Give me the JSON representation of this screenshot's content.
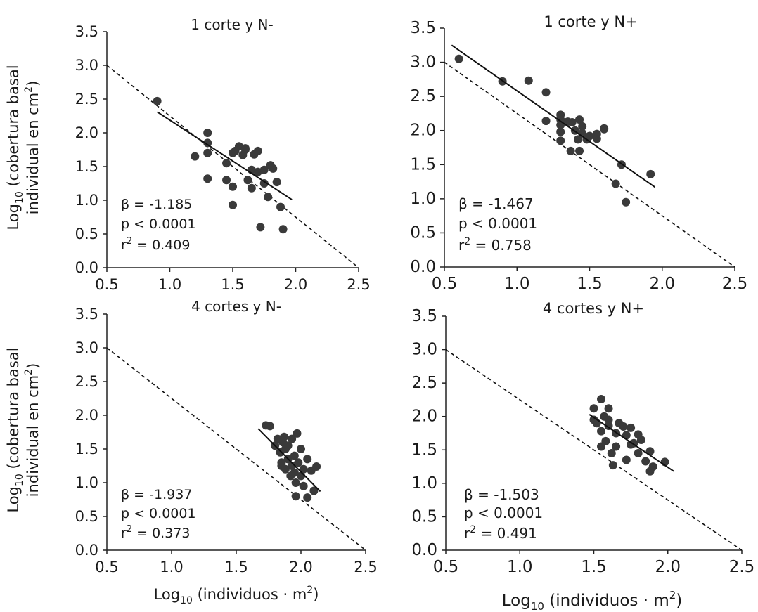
{
  "ylabel": {
    "line1_pre": "Log",
    "line1_sub": "10",
    "line1_post": " (cobertura basal",
    "line2_pre": "individual en cm",
    "line2_sup": "2",
    "line2_post": ")"
  },
  "xlabel": {
    "pre": "Log",
    "sub": "10",
    "mid": " (individuos · m",
    "sup": "2",
    "post": ")"
  },
  "colors": {
    "points": "#3a3a3a",
    "lines": "#111111",
    "axes": "#222222"
  },
  "chart_data": [
    {
      "type": "scatter",
      "title": "1 corte y N-",
      "xlim": [
        0.5,
        2.5
      ],
      "ylim": [
        0.0,
        3.5
      ],
      "xticks": [
        "0.5",
        "1.0",
        "1.5",
        "2.0",
        "2.5"
      ],
      "yticks": [
        "0.0",
        "0.5",
        "1.0",
        "1.5",
        "2.0",
        "2.5",
        "3.0",
        "3.5"
      ],
      "stats": {
        "beta": "β = -1.185",
        "p": "p < 0.0001",
        "r2_pre": "r",
        "r2_sup": "2",
        "r2_post": " = 0.409"
      },
      "fit_line": {
        "x": [
          0.9,
          1.97
        ],
        "y": [
          2.31,
          1.01
        ]
      },
      "reference_line": {
        "x": [
          0.5,
          2.5
        ],
        "y": [
          3.0,
          0.0
        ]
      },
      "points": {
        "x": [
          0.9,
          1.3,
          1.3,
          1.3,
          1.2,
          1.3,
          1.45,
          1.45,
          1.5,
          1.5,
          1.5,
          1.52,
          1.55,
          1.58,
          1.6,
          1.62,
          1.65,
          1.65,
          1.7,
          1.7,
          1.72,
          1.75,
          1.75,
          1.78,
          1.8,
          1.82,
          1.85,
          1.88,
          1.9,
          1.6,
          1.67
        ],
        "y": [
          2.47,
          2.0,
          1.85,
          1.7,
          1.65,
          1.32,
          1.55,
          1.3,
          1.7,
          1.2,
          0.93,
          1.73,
          1.8,
          1.67,
          1.77,
          1.3,
          1.45,
          1.18,
          1.73,
          1.42,
          0.6,
          1.45,
          1.25,
          1.05,
          1.52,
          1.47,
          1.27,
          0.9,
          0.57,
          1.75,
          1.68
        ]
      }
    },
    {
      "type": "scatter",
      "title": "1 corte y N+",
      "xlim": [
        0.5,
        2.5
      ],
      "ylim": [
        0.0,
        3.5
      ],
      "xticks": [
        "0.5",
        "1.0",
        "1.5",
        "2.0",
        "2.5"
      ],
      "yticks": [
        "0.0",
        "0.5",
        "1.0",
        "1.5",
        "2.0",
        "2.5",
        "3.0",
        "3.5"
      ],
      "stats": {
        "beta": "β = -1.467",
        "p": "p < 0.0001",
        "r2_pre": "r",
        "r2_sup": "2",
        "r2_post": " = 0.758"
      },
      "fit_line": {
        "x": [
          0.55,
          1.95
        ],
        "y": [
          3.25,
          1.17
        ]
      },
      "reference_line": {
        "x": [
          0.5,
          2.5
        ],
        "y": [
          3.0,
          0.0
        ]
      },
      "points": {
        "x": [
          0.6,
          0.9,
          1.08,
          1.2,
          1.2,
          1.3,
          1.3,
          1.3,
          1.3,
          1.3,
          1.35,
          1.37,
          1.38,
          1.4,
          1.42,
          1.43,
          1.43,
          1.45,
          1.45,
          1.48,
          1.5,
          1.55,
          1.55,
          1.6,
          1.6,
          1.68,
          1.72,
          1.75,
          1.92
        ],
        "y": [
          3.05,
          2.72,
          2.73,
          2.56,
          2.14,
          2.23,
          2.16,
          2.08,
          1.98,
          1.85,
          2.13,
          1.7,
          2.12,
          2.0,
          1.87,
          2.16,
          1.7,
          2.06,
          1.96,
          1.87,
          1.92,
          1.95,
          1.88,
          2.03,
          2.02,
          1.22,
          1.5,
          0.95,
          1.36
        ]
      }
    },
    {
      "type": "scatter",
      "title": "4 cortes y N-",
      "xlim": [
        0.5,
        2.5
      ],
      "ylim": [
        0.0,
        3.5
      ],
      "xticks": [
        "0.5",
        "1.0",
        "1.5",
        "2.0",
        "2.5"
      ],
      "yticks": [
        "0.0",
        "0.5",
        "1.0",
        "1.5",
        "2.0",
        "2.5",
        "3.0",
        "3.5"
      ],
      "stats": {
        "beta": "β = -1.937",
        "p": "p < 0.0001",
        "r2_pre": "r",
        "r2_sup": "2",
        "r2_post": " = 0.373"
      },
      "fit_line": {
        "x": [
          1.67,
          2.15
        ],
        "y": [
          1.8,
          0.87
        ]
      },
      "reference_line": {
        "x": [
          0.5,
          2.5
        ],
        "y": [
          3.0,
          0.0
        ]
      },
      "points": {
        "x": [
          1.73,
          1.76,
          1.82,
          1.84,
          1.85,
          1.86,
          1.87,
          1.88,
          1.88,
          1.9,
          1.9,
          1.92,
          1.93,
          1.93,
          1.95,
          1.95,
          1.96,
          1.96,
          1.97,
          1.98,
          2.0,
          2.0,
          2.02,
          2.02,
          2.05,
          2.05,
          2.08,
          2.1,
          2.12,
          1.8,
          1.85
        ],
        "y": [
          1.85,
          1.84,
          1.65,
          1.45,
          1.3,
          1.6,
          1.68,
          1.5,
          1.2,
          1.55,
          1.35,
          1.1,
          1.65,
          1.25,
          1.4,
          1.15,
          0.8,
          1.0,
          1.73,
          1.3,
          1.1,
          1.5,
          0.95,
          1.2,
          1.35,
          0.78,
          1.18,
          0.88,
          1.24,
          1.55,
          1.25
        ]
      }
    },
    {
      "type": "scatter",
      "title": "4 cortes y N+",
      "xlim": [
        0.5,
        2.5
      ],
      "ylim": [
        0.0,
        3.5
      ],
      "xticks": [
        "0.5",
        "1.0",
        "1.5",
        "2.0",
        "2.5"
      ],
      "yticks": [
        "0.0",
        "0.5",
        "1.0",
        "1.5",
        "2.0",
        "2.5",
        "3.0",
        "3.5"
      ],
      "stats": {
        "beta": "β = -1.503",
        "p": "p < 0.0001",
        "r2_pre": "r",
        "r2_sup": "2",
        "r2_post": " = 0.491"
      },
      "fit_line": {
        "x": [
          1.47,
          2.04
        ],
        "y": [
          2.03,
          1.18
        ]
      },
      "reference_line": {
        "x": [
          0.5,
          2.5
        ],
        "y": [
          3.0,
          0.0
        ]
      },
      "points": {
        "x": [
          1.5,
          1.5,
          1.52,
          1.55,
          1.55,
          1.57,
          1.58,
          1.6,
          1.6,
          1.62,
          1.63,
          1.65,
          1.65,
          1.67,
          1.7,
          1.72,
          1.72,
          1.75,
          1.75,
          1.77,
          1.8,
          1.8,
          1.82,
          1.85,
          1.88,
          1.88,
          1.9,
          1.98,
          1.6,
          1.55
        ],
        "y": [
          2.12,
          1.95,
          1.9,
          2.26,
          1.78,
          2.0,
          1.63,
          2.12,
          1.86,
          1.45,
          1.27,
          1.75,
          1.55,
          1.9,
          1.85,
          1.72,
          1.35,
          1.58,
          1.83,
          1.6,
          1.73,
          1.45,
          1.65,
          1.33,
          1.48,
          1.18,
          1.25,
          1.32,
          1.95,
          1.55
        ]
      }
    }
  ]
}
